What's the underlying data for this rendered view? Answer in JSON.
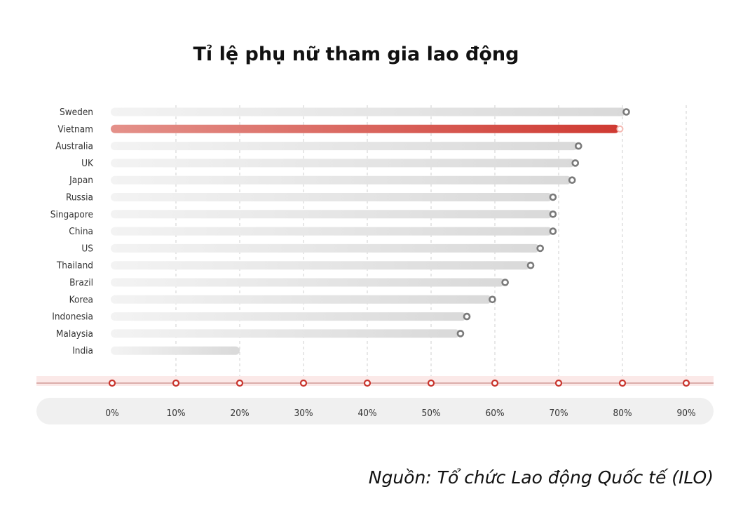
{
  "chart_data": {
    "type": "bar",
    "orientation": "horizontal",
    "title": "Tỉ lệ phụ nữ tham gia lao động",
    "categories": [
      "Sweden",
      "Vietnam",
      "Australia",
      "UK",
      "Japan",
      "Russia",
      "Singapore",
      "China",
      "US",
      "Thailand",
      "Brazil",
      "Korea",
      "Indonesia",
      "Malaysia",
      "India"
    ],
    "values": [
      80.5,
      79.5,
      73,
      72.5,
      72,
      69,
      69,
      69,
      67,
      65.5,
      61.5,
      59.5,
      55.5,
      54.5,
      20
    ],
    "highlight": "Vietnam",
    "x_ticks": [
      "0%",
      "10%",
      "20%",
      "30%",
      "40%",
      "50%",
      "60%",
      "70%",
      "80%",
      "90%"
    ],
    "xlim": [
      0,
      90
    ],
    "grid": true,
    "colors": {
      "bar": "#dedede",
      "highlight": "#d0413a",
      "highlight_light": "#e08a82",
      "marker": "#7a7a7a",
      "axis_dot": "#c8342c"
    }
  },
  "source": "Nguồn: Tổ chức Lao động Quốc tế (ILO)"
}
